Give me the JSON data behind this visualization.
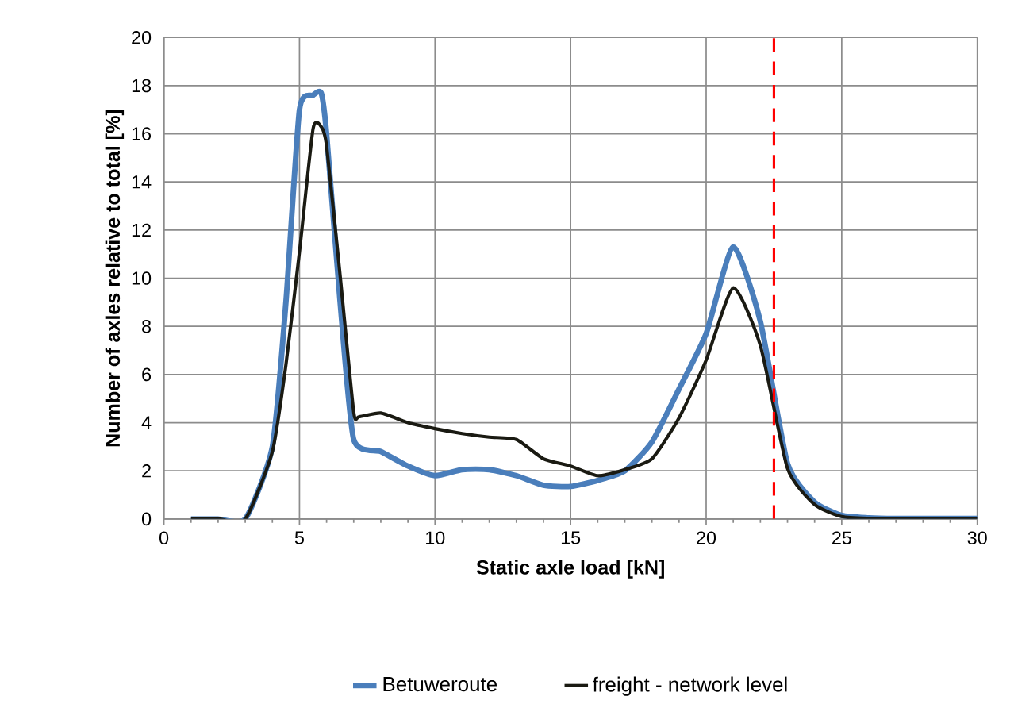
{
  "chart_data": {
    "type": "line",
    "xlabel": "Static axle load [kN]",
    "ylabel": "Number of axles relative to total [%]",
    "xlim": [
      0,
      30
    ],
    "xticks": [
      0,
      5,
      10,
      15,
      20,
      25,
      30
    ],
    "ylim": [
      0,
      20
    ],
    "yticks": [
      0,
      2,
      4,
      6,
      8,
      10,
      12,
      14,
      16,
      18,
      20
    ],
    "grid": true,
    "legend": "bottom",
    "marker": "none",
    "line_style": "solid",
    "ref_lines": [
      {
        "axis": "x",
        "value": 22.5,
        "color": "#ff0000",
        "line_style": "dashed"
      }
    ],
    "series": [
      {
        "name": "Betuweroute",
        "color": "#4a7ebb",
        "x": [
          1,
          2,
          3,
          4,
          4.5,
          5,
          5.5,
          5.8,
          6,
          6.5,
          7,
          8,
          9,
          10,
          11,
          12,
          13,
          14,
          15,
          16,
          17,
          18,
          19,
          20,
          21,
          22,
          23,
          24,
          25,
          26,
          27,
          28,
          29,
          30
        ],
        "values": [
          0,
          0,
          0,
          3.0,
          9.0,
          17.0,
          17.6,
          17.7,
          16.0,
          9.0,
          3.3,
          2.8,
          2.2,
          1.8,
          2.05,
          2.05,
          1.8,
          1.4,
          1.35,
          1.6,
          2.0,
          3.2,
          5.4,
          7.7,
          11.3,
          8.2,
          2.3,
          0.7,
          0.15,
          0.05,
          0.02,
          0.02,
          0.02,
          0.02
        ]
      },
      {
        "name": "freight - network level",
        "color": "#1a1a12",
        "x": [
          1,
          2,
          3,
          4,
          4.5,
          5,
          5.5,
          5.8,
          6,
          6.5,
          7,
          7.2,
          8,
          9,
          10,
          11,
          12,
          13,
          14,
          15,
          16,
          17,
          18,
          19,
          20,
          21,
          22,
          23,
          24,
          25,
          26,
          27,
          28,
          29,
          30
        ],
        "values": [
          0,
          0,
          0,
          2.8,
          6.4,
          11.1,
          16.2,
          16.3,
          15.5,
          10.1,
          4.45,
          4.25,
          4.4,
          4.0,
          3.75,
          3.55,
          3.4,
          3.3,
          2.5,
          2.2,
          1.8,
          2.05,
          2.5,
          4.2,
          6.6,
          9.6,
          7.2,
          2.1,
          0.6,
          0.1,
          0.02,
          0.02,
          0.02,
          0.02,
          0.02
        ]
      }
    ]
  }
}
